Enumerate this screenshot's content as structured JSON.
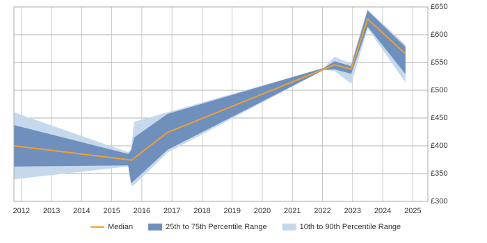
{
  "chart_data": {
    "type": "band-line",
    "x": [
      2011.75,
      2015.55,
      2015.65,
      2015.75,
      2016.85,
      2022.05,
      2022.4,
      2022.95,
      2023.5,
      2024.75
    ],
    "series": [
      {
        "name": "10th to 90th Percentile Range",
        "color": "#c6d9ec",
        "kind": "band",
        "low": [
          340,
          363,
          328,
          330,
          388,
          537,
          535,
          512,
          612,
          515
        ],
        "high": [
          460,
          388,
          395,
          443,
          460,
          540,
          560,
          548,
          645,
          582
        ]
      },
      {
        "name": "25th to 75th Percentile Range",
        "color": "#6f8fbd",
        "kind": "band",
        "low": [
          363,
          365,
          333,
          338,
          393,
          537,
          538,
          530,
          615,
          530
        ],
        "high": [
          437,
          385,
          392,
          415,
          457,
          540,
          552,
          543,
          643,
          578
        ]
      },
      {
        "name": "Median",
        "color": "#f0a030",
        "kind": "line",
        "values": [
          400,
          375,
          374,
          378,
          424,
          538,
          546,
          538,
          628,
          566
        ]
      }
    ],
    "legend_order": [
      "Median",
      "25th to 75th Percentile Range",
      "10th to 90th Percentile Range"
    ],
    "xlim": [
      2011.75,
      2025.5
    ],
    "xticks": [
      2012,
      2013,
      2014,
      2015,
      2016,
      2017,
      2018,
      2019,
      2020,
      2021,
      2022,
      2023,
      2024,
      2025
    ],
    "ylim": [
      300,
      650
    ],
    "yticks": [
      {
        "value": 300,
        "label": "£300"
      },
      {
        "value": 350,
        "label": "£350"
      },
      {
        "value": 400,
        "label": "£400"
      },
      {
        "value": 450,
        "label": "£450"
      },
      {
        "value": 500,
        "label": "£500"
      },
      {
        "value": 550,
        "label": "£550"
      },
      {
        "value": 600,
        "label": "£600"
      },
      {
        "value": 650,
        "label": "£650"
      }
    ],
    "grid": true,
    "legend": "bottom"
  }
}
